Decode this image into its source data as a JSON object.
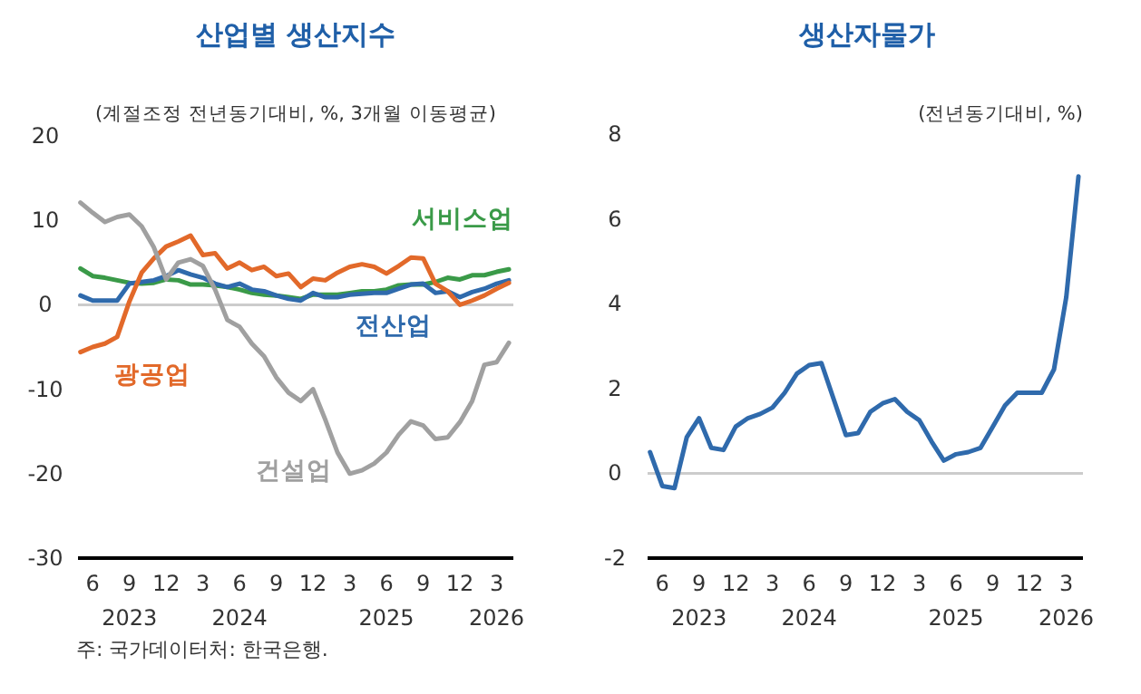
{
  "chart_data": [
    {
      "type": "line",
      "title": "산업별 생산지수",
      "subtitle": "(계절조정 전년동기대비, %, 3개월 이동평균)",
      "x": [
        "2023-05",
        "2023-06",
        "2023-07",
        "2023-08",
        "2023-09",
        "2023-10",
        "2023-11",
        "2023-12",
        "2024-01",
        "2024-02",
        "2024-03",
        "2024-04",
        "2024-05",
        "2024-06",
        "2024-07",
        "2024-08",
        "2024-09",
        "2024-10",
        "2024-11",
        "2024-12",
        "2025-01",
        "2025-02",
        "2025-03",
        "2025-04",
        "2025-05",
        "2025-06",
        "2025-07",
        "2025-08",
        "2025-09",
        "2025-10",
        "2025-11",
        "2025-12",
        "2026-01",
        "2026-02",
        "2026-03",
        "2026-04"
      ],
      "series": [
        {
          "name": "서비스업",
          "color": "#3a9a48",
          "values": [
            4.3,
            3.4,
            3.2,
            2.9,
            2.6,
            2.5,
            2.6,
            3.0,
            2.9,
            2.4,
            2.4,
            2.3,
            2.1,
            1.8,
            1.4,
            1.2,
            1.1,
            0.9,
            0.7,
            1.2,
            1.2,
            1.2,
            1.4,
            1.6,
            1.6,
            1.8,
            2.3,
            2.4,
            2.4,
            2.7,
            3.2,
            3.0,
            3.5,
            3.5,
            3.9,
            4.2
          ]
        },
        {
          "name": "전산업",
          "color": "#2f6aac",
          "values": [
            1.1,
            0.5,
            0.5,
            0.5,
            2.5,
            2.7,
            2.9,
            3.4,
            4.1,
            3.6,
            3.2,
            2.5,
            2.1,
            2.5,
            1.8,
            1.6,
            1.1,
            0.7,
            0.5,
            1.4,
            0.9,
            0.9,
            1.2,
            1.3,
            1.4,
            1.4,
            1.9,
            2.4,
            2.5,
            1.4,
            1.6,
            0.9,
            1.5,
            1.9,
            2.5,
            2.9
          ]
        },
        {
          "name": "광공업",
          "color": "#e2692a",
          "values": [
            -5.6,
            -5.0,
            -4.6,
            -3.8,
            0.4,
            3.8,
            5.5,
            6.9,
            7.5,
            8.2,
            5.9,
            6.1,
            4.3,
            5.0,
            4.1,
            4.5,
            3.4,
            3.7,
            2.1,
            3.1,
            2.9,
            3.8,
            4.5,
            4.8,
            4.5,
            3.7,
            4.6,
            5.6,
            5.5,
            2.5,
            1.6,
            0.0,
            0.5,
            1.1,
            1.9,
            2.6
          ]
        },
        {
          "name": "건설업",
          "color": "#a0a0a0",
          "values": [
            12.1,
            10.9,
            9.8,
            10.4,
            10.7,
            9.3,
            6.8,
            3.0,
            5.0,
            5.4,
            4.6,
            1.8,
            -1.8,
            -2.6,
            -4.6,
            -6.1,
            -8.6,
            -10.4,
            -11.4,
            -10.0,
            -13.6,
            -17.5,
            -20.0,
            -19.6,
            -18.8,
            -17.5,
            -15.4,
            -13.8,
            -14.3,
            -15.9,
            -15.7,
            -13.9,
            -11.4,
            -7.1,
            -6.8,
            -4.5
          ]
        }
      ],
      "xlim": [
        "2023-04-25",
        "2026-04-12"
      ],
      "xticks": [
        {
          "value": "2023-06",
          "label": "6"
        },
        {
          "value": "2023-09",
          "label": "9\n2023"
        },
        {
          "value": "2023-12",
          "label": "12"
        },
        {
          "value": "2024-03",
          "label": "3"
        },
        {
          "value": "2024-06",
          "label": "6\n2024"
        },
        {
          "value": "2024-09",
          "label": "9"
        },
        {
          "value": "2024-12",
          "label": "12"
        },
        {
          "value": "2025-03",
          "label": "3"
        },
        {
          "value": "2025-06",
          "label": "6\n2025"
        },
        {
          "value": "2025-09",
          "label": "9"
        },
        {
          "value": "2025-12",
          "label": "12"
        },
        {
          "value": "2026-03",
          "label": "3\n2026"
        }
      ],
      "ylim": [
        -30,
        20
      ],
      "yticks": [
        -30,
        -20,
        -10,
        0,
        10,
        20
      ],
      "ref_lines": [
        {
          "axis": "y",
          "value": 0,
          "color": "#cccccc"
        }
      ],
      "grid": false,
      "annotations": [
        "주: 국가데이터처: 한국은행."
      ]
    },
    {
      "type": "line",
      "title": "생산자물가",
      "subtitle": "(전년동기대비, %)",
      "x": [
        "2023-05",
        "2023-06",
        "2023-07",
        "2023-08",
        "2023-09",
        "2023-10",
        "2023-11",
        "2023-12",
        "2024-01",
        "2024-02",
        "2024-03",
        "2024-04",
        "2024-05",
        "2024-06",
        "2024-07",
        "2024-08",
        "2024-09",
        "2024-10",
        "2024-11",
        "2024-12",
        "2025-01",
        "2025-02",
        "2025-03",
        "2025-04",
        "2025-05",
        "2025-06",
        "2025-07",
        "2025-08",
        "2025-09",
        "2025-10",
        "2025-11",
        "2025-12",
        "2026-01",
        "2026-02",
        "2026-03",
        "2026-04"
      ],
      "series": [
        {
          "color": "#2f6aac",
          "values": [
            0.5,
            -0.3,
            -0.35,
            0.85,
            1.3,
            0.6,
            0.55,
            1.1,
            1.3,
            1.4,
            1.55,
            1.9,
            2.35,
            2.55,
            2.6,
            1.75,
            0.9,
            0.95,
            1.45,
            1.65,
            1.75,
            1.45,
            1.25,
            0.75,
            0.3,
            0.45,
            0.5,
            0.6,
            1.1,
            1.6,
            1.9,
            1.9,
            1.9,
            2.45,
            4.15,
            7.0
          ]
        }
      ],
      "xlim": [
        "2023-04-25",
        "2026-04-12"
      ],
      "xticks": [
        {
          "value": "2023-06",
          "label": "6"
        },
        {
          "value": "2023-09",
          "label": "9\n2023"
        },
        {
          "value": "2023-12",
          "label": "12"
        },
        {
          "value": "2024-03",
          "label": "3"
        },
        {
          "value": "2024-06",
          "label": "6\n2024"
        },
        {
          "value": "2024-09",
          "label": "9"
        },
        {
          "value": "2024-12",
          "label": "12"
        },
        {
          "value": "2025-03",
          "label": "3"
        },
        {
          "value": "2025-06",
          "label": "6\n2025"
        },
        {
          "value": "2025-09",
          "label": "9"
        },
        {
          "value": "2025-12",
          "label": "12"
        },
        {
          "value": "2026-03",
          "label": "3\n2026"
        }
      ],
      "ylim": [
        -2,
        8
      ],
      "yticks": [
        -2,
        0,
        2,
        4,
        6,
        8
      ],
      "ref_lines": [
        {
          "axis": "y",
          "value": 0,
          "color": "#cccccc"
        }
      ],
      "grid": false
    }
  ]
}
